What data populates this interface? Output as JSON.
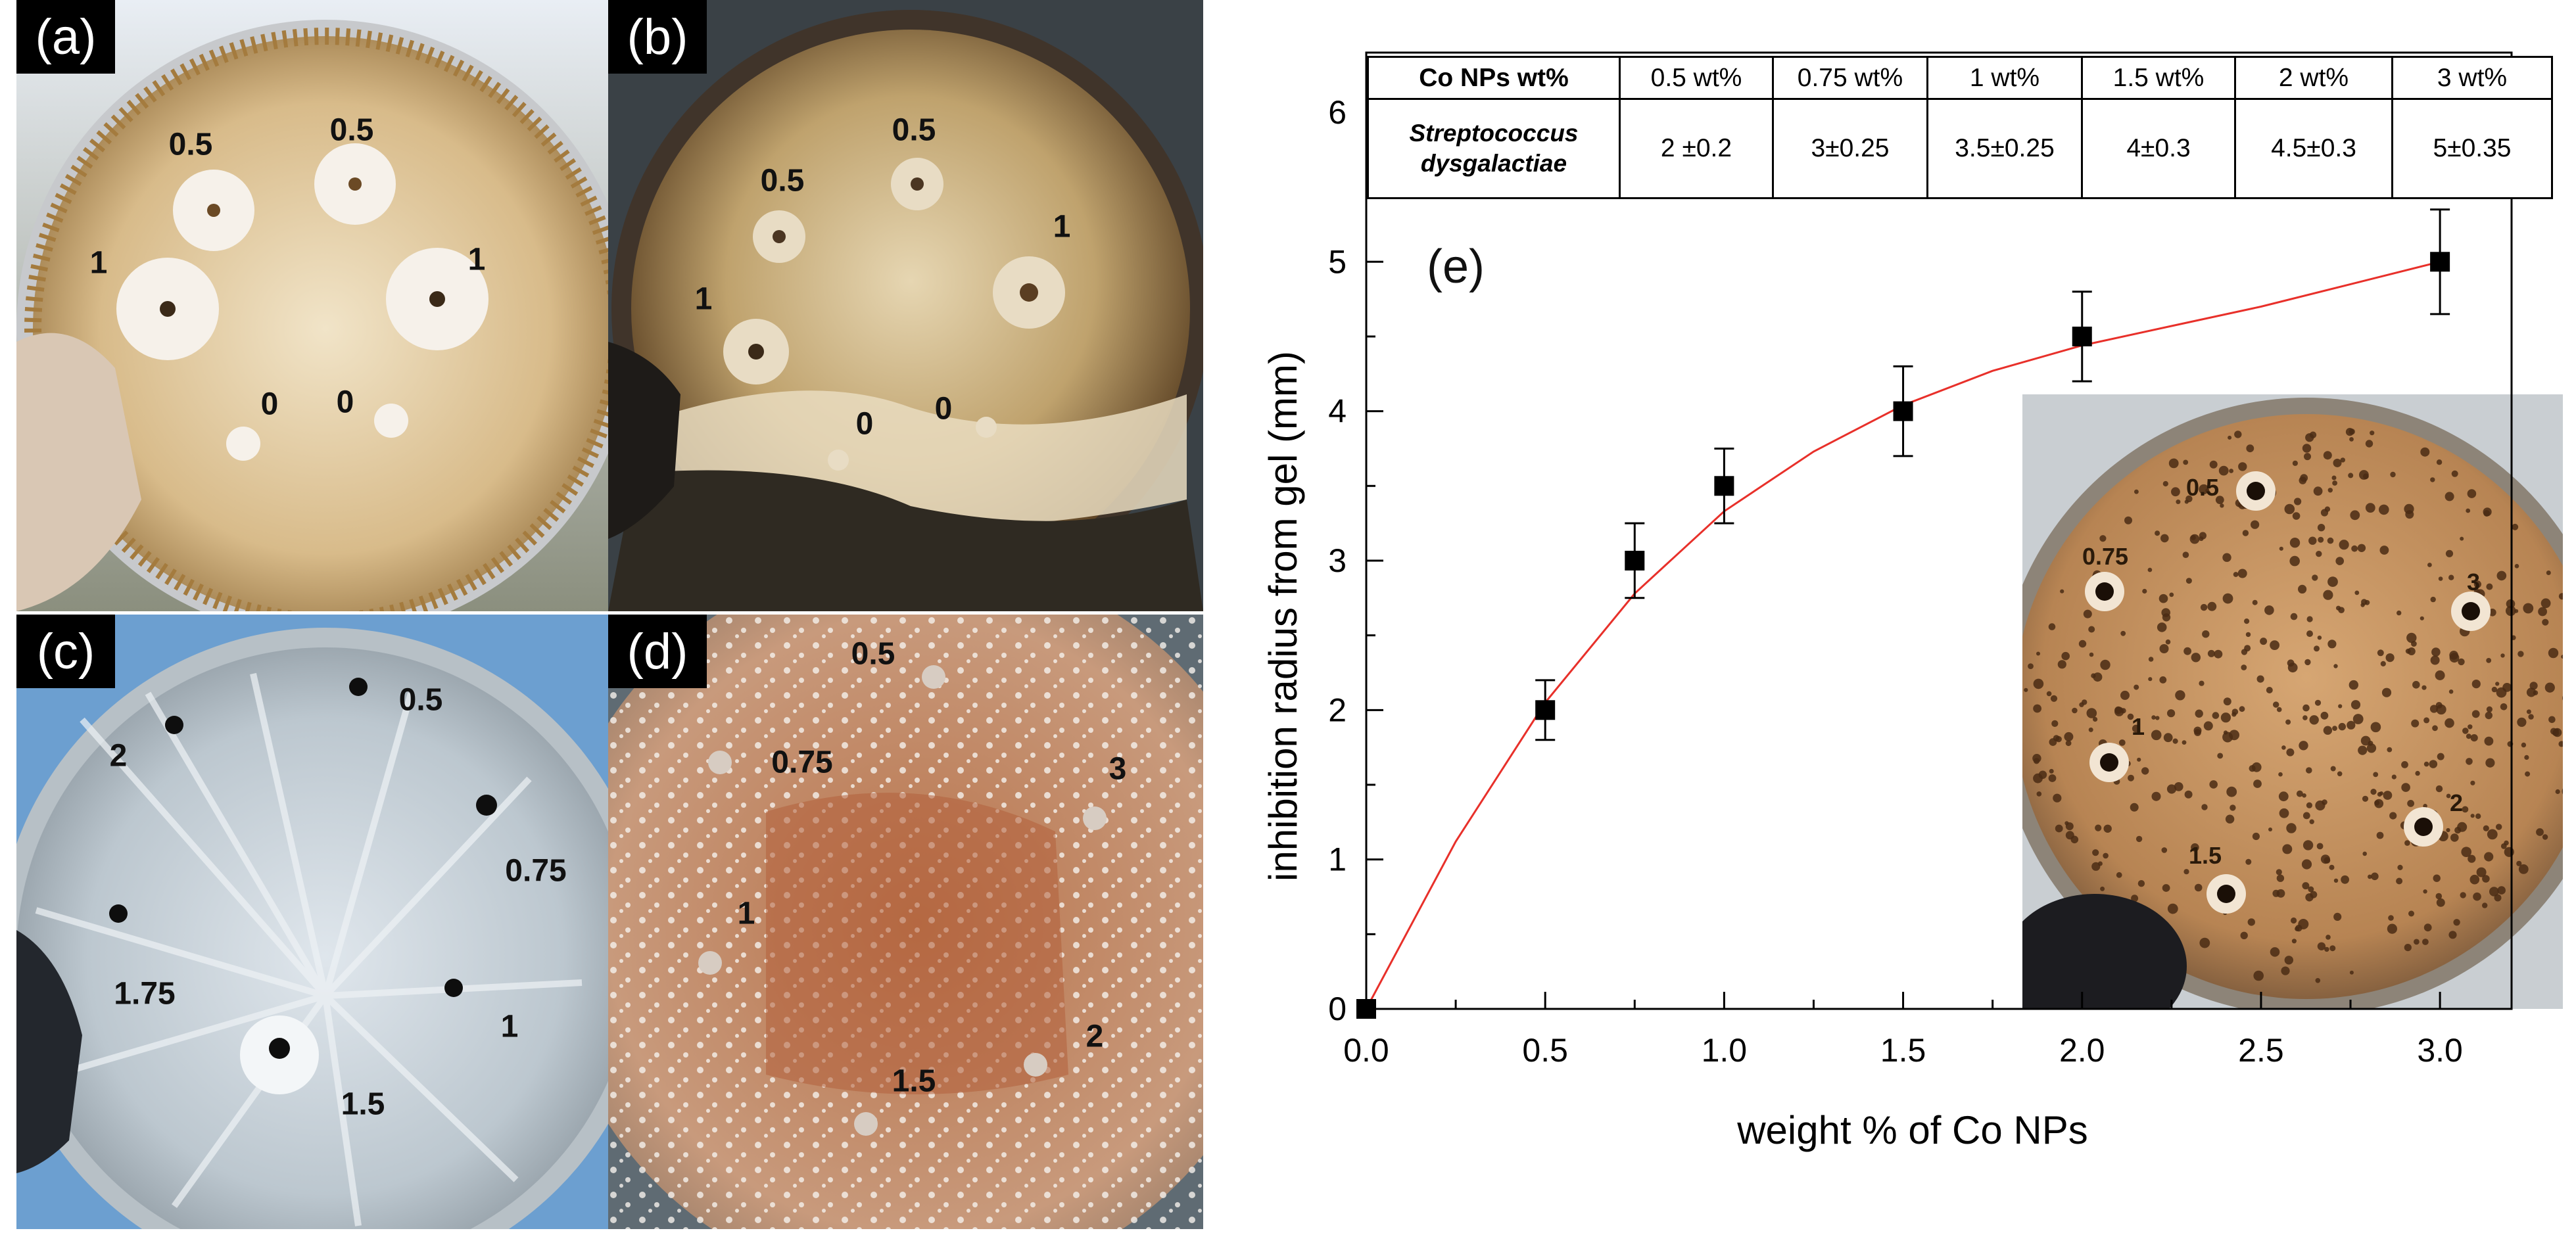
{
  "figure": {
    "panels": {
      "a": {
        "label": "(a)",
        "well_labels": [
          "0.5",
          "0.5",
          "1",
          "1",
          "0",
          "0"
        ]
      },
      "b": {
        "label": "(b)",
        "well_labels": [
          "0.5",
          "0.5",
          "1",
          "1",
          "0",
          "0"
        ]
      },
      "c": {
        "label": "(c)",
        "well_labels": [
          "0.5",
          "2",
          "0.75",
          "1.75",
          "1",
          "1.5"
        ]
      },
      "d": {
        "label": "(d)",
        "well_labels": [
          "0.5",
          "0.75",
          "3",
          "1",
          "2",
          "1.5"
        ]
      },
      "e": {
        "label": "(e)",
        "inset_labels": [
          "0.5",
          "0.75",
          "3",
          "1",
          "2",
          "1.5"
        ]
      }
    }
  },
  "table": {
    "header_label": "Co NPs wt%",
    "columns": [
      "0.5 wt%",
      "0.75 wt%",
      "1 wt%",
      "1.5 wt%",
      "2 wt%",
      "3 wt%"
    ],
    "row_label_line1": "Streptococcus",
    "row_label_line2": "dysgalactiae",
    "row_values": [
      "2 ±0.2",
      "3±0.25",
      "3.5±0.25",
      "4±0.3",
      "4.5±0.3",
      "5±0.35"
    ]
  },
  "chart_data": {
    "type": "scatter",
    "title": "",
    "xlabel": "weight % of Co NPs",
    "ylabel": "inhibition radius from gel (mm)",
    "xlim": [
      0,
      3.2
    ],
    "ylim": [
      0,
      6.4
    ],
    "xticks": [
      0.0,
      0.5,
      1.0,
      1.5,
      2.0,
      2.5,
      3.0
    ],
    "xtick_labels": [
      "0.0",
      "0.5",
      "1.0",
      "1.5",
      "2.0",
      "2.5",
      "3.0"
    ],
    "yticks": [
      0,
      1,
      2,
      3,
      4,
      5,
      6
    ],
    "ytick_labels": [
      "0",
      "1",
      "2",
      "3",
      "4",
      "5",
      "6"
    ],
    "series": [
      {
        "name": "Streptococcus dysgalactiae",
        "marker": "square",
        "color": "#000000",
        "x": [
          0,
          0.5,
          0.75,
          1.0,
          1.5,
          2.0,
          3.0
        ],
        "y": [
          0,
          2.0,
          3.0,
          3.5,
          4.0,
          4.5,
          5.0
        ],
        "error": [
          0,
          0.2,
          0.25,
          0.25,
          0.3,
          0.3,
          0.35
        ]
      }
    ],
    "fit_curve": {
      "color": "#e8302a",
      "x": [
        0,
        0.25,
        0.5,
        0.75,
        1.0,
        1.25,
        1.5,
        1.75,
        2.0,
        2.25,
        2.5,
        2.75,
        3.0
      ],
      "y": [
        0,
        1.12,
        2.05,
        2.78,
        3.33,
        3.73,
        4.04,
        4.27,
        4.44,
        4.57,
        4.7,
        4.85,
        5.0
      ]
    }
  }
}
